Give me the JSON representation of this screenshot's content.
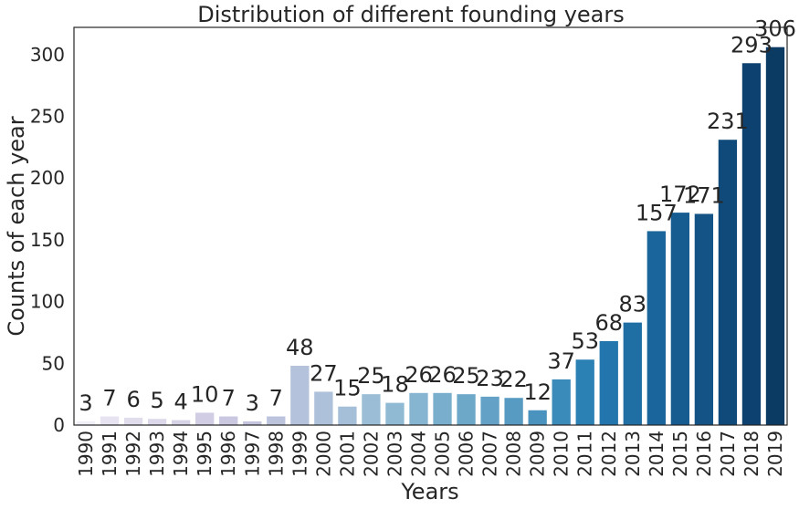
{
  "chart_data": {
    "type": "bar",
    "title": "Distribution of different  founding years",
    "xlabel": "Years",
    "ylabel": "Counts of each year",
    "categories": [
      "1990",
      "1991",
      "1992",
      "1993",
      "1994",
      "1995",
      "1996",
      "1997",
      "1998",
      "1999",
      "2000",
      "2001",
      "2002",
      "2003",
      "2004",
      "2005",
      "2006",
      "2007",
      "2008",
      "2009",
      "2010",
      "2011",
      "2012",
      "2013",
      "2014",
      "2015",
      "2016",
      "2017",
      "2018",
      "2019"
    ],
    "values": [
      3,
      7,
      6,
      5,
      4,
      10,
      7,
      3,
      7,
      48,
      27,
      15,
      25,
      18,
      26,
      26,
      25,
      23,
      22,
      12,
      37,
      53,
      68,
      83,
      157,
      172,
      171,
      231,
      293,
      306
    ],
    "ylim": [
      0,
      322
    ],
    "yticks": [
      0,
      50,
      100,
      150,
      200,
      250,
      300
    ],
    "grid": false,
    "colors": [
      "#f0eef6",
      "#e7e3f0",
      "#e1dded",
      "#dcd8ea",
      "#d6d3e7",
      "#d0cde4",
      "#cac8e1",
      "#c4c4df",
      "#bcc3dd",
      "#b5c2dc",
      "#adc1da",
      "#a5bfd8",
      "#9bbdd6",
      "#90b9d3",
      "#85b5d0",
      "#79afcd",
      "#6ea8c9",
      "#63a2c6",
      "#579bc2",
      "#4a93be",
      "#3a8aba",
      "#2b80b4",
      "#2276ad",
      "#1f6ea4",
      "#1a659b",
      "#165c90",
      "#135385",
      "#104a7a",
      "#0d416f",
      "#0b3a63"
    ]
  }
}
